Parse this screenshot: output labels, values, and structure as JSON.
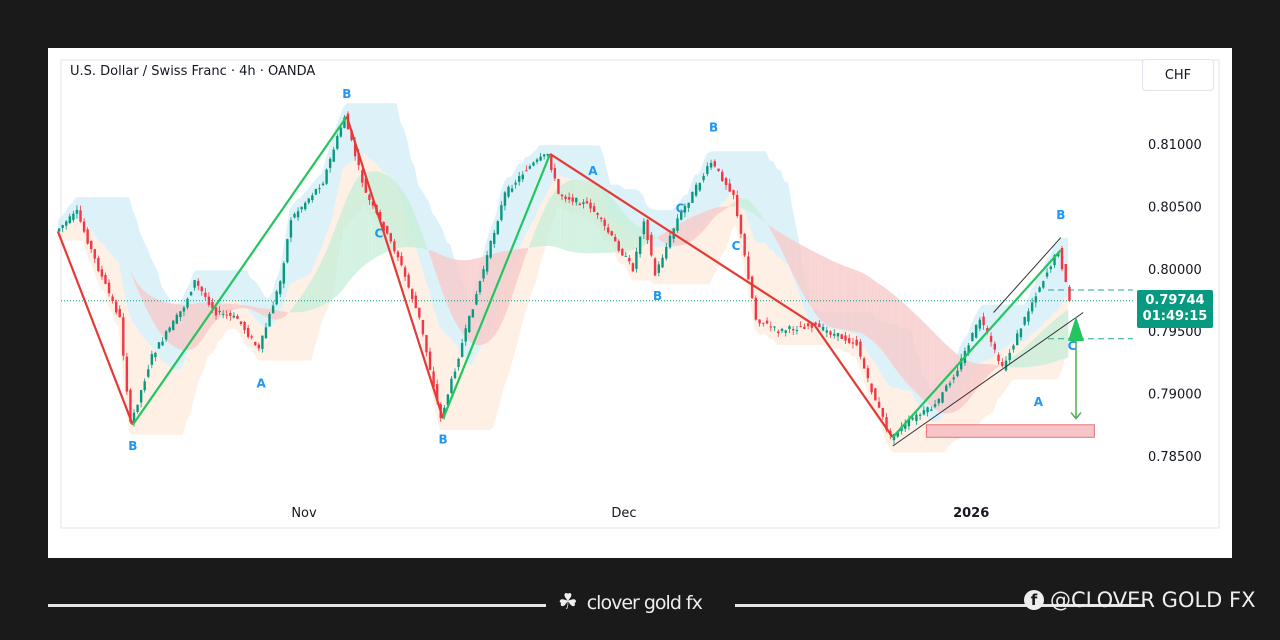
{
  "header": {
    "title": "U.S. Dollar / Swiss Franc · 4h · OANDA",
    "currency_button": "CHF"
  },
  "price_tag": {
    "price": "0.79744",
    "countdown": "01:49:15",
    "color": "#089981"
  },
  "colors": {
    "up": "#089981",
    "down": "#f23645",
    "wave_label": "#2196f3",
    "zigzag_up": "#22c55e",
    "zigzag_down": "#e53935",
    "cloud_bear": "#f8c9c9",
    "cloud_bull": "#c8efd9",
    "band": "#bfe8f2",
    "target_zone": "#f7c5c8"
  },
  "footer": {
    "brand": "clover gold fx",
    "social": "@CLOVER GOLD FX",
    "brand_icon": "clover-icon",
    "social_icon": "facebook-icon"
  },
  "chart_data": {
    "type": "candlestick",
    "title": "U.S. Dollar / Swiss Franc · 4h · OANDA",
    "ylim": [
      0.7825,
      0.8135
    ],
    "y_ticks": [
      "0.81000",
      "0.80500",
      "0.80000",
      "0.79500",
      "0.79000",
      "0.78500"
    ],
    "x_ticks": [
      {
        "label": "Nov",
        "date": "2025-11-01"
      },
      {
        "label": "Dec",
        "date": "2025-12-01"
      },
      {
        "label": "2026",
        "date": "2026-01-01"
      }
    ],
    "swing_points": [
      {
        "date": "2025-10-09",
        "price": 0.803
      },
      {
        "date": "2025-10-11",
        "price": 0.8045
      },
      {
        "date": "2025-10-13",
        "price": 0.8
      },
      {
        "date": "2025-10-15",
        "price": 0.796
      },
      {
        "date": "2025-10-16",
        "price": 0.7875
      },
      {
        "date": "2025-10-18",
        "price": 0.793
      },
      {
        "date": "2025-10-21",
        "price": 0.797
      },
      {
        "date": "2025-10-22",
        "price": 0.799
      },
      {
        "date": "2025-10-24",
        "price": 0.7965
      },
      {
        "date": "2025-10-26",
        "price": 0.796
      },
      {
        "date": "2025-10-28",
        "price": 0.7935
      },
      {
        "date": "2025-10-30",
        "price": 0.799
      },
      {
        "date": "2025-10-31",
        "price": 0.804
      },
      {
        "date": "2025-11-03",
        "price": 0.807
      },
      {
        "date": "2025-11-05",
        "price": 0.8122
      },
      {
        "date": "2025-11-07",
        "price": 0.806
      },
      {
        "date": "2025-11-10",
        "price": 0.801
      },
      {
        "date": "2025-11-12",
        "price": 0.796
      },
      {
        "date": "2025-11-14",
        "price": 0.788
      },
      {
        "date": "2025-11-16",
        "price": 0.794
      },
      {
        "date": "2025-11-18",
        "price": 0.8
      },
      {
        "date": "2025-11-20",
        "price": 0.806
      },
      {
        "date": "2025-11-22",
        "price": 0.808
      },
      {
        "date": "2025-11-24",
        "price": 0.8092
      },
      {
        "date": "2025-11-25",
        "price": 0.806
      },
      {
        "date": "2025-11-28",
        "price": 0.805
      },
      {
        "date": "2025-12-02",
        "price": 0.8
      },
      {
        "date": "2025-12-03",
        "price": 0.804
      },
      {
        "date": "2025-12-04",
        "price": 0.7995
      },
      {
        "date": "2025-12-06",
        "price": 0.804
      },
      {
        "date": "2025-12-09",
        "price": 0.8085
      },
      {
        "date": "2025-12-11",
        "price": 0.806
      },
      {
        "date": "2025-12-13",
        "price": 0.796
      },
      {
        "date": "2025-12-15",
        "price": 0.795
      },
      {
        "date": "2025-12-18",
        "price": 0.7955
      },
      {
        "date": "2025-12-22",
        "price": 0.794
      },
      {
        "date": "2025-12-23",
        "price": 0.791
      },
      {
        "date": "2025-12-25",
        "price": 0.7865
      },
      {
        "date": "2025-12-27",
        "price": 0.788
      },
      {
        "date": "2025-12-29",
        "price": 0.789
      },
      {
        "date": "2025-12-31",
        "price": 0.792
      },
      {
        "date": "2026-01-02",
        "price": 0.796
      },
      {
        "date": "2026-01-04",
        "price": 0.792
      },
      {
        "date": "2026-01-07",
        "price": 0.798
      },
      {
        "date": "2026-01-09",
        "price": 0.8015
      },
      {
        "date": "2026-01-10",
        "price": 0.79744
      }
    ],
    "wave_labels": [
      {
        "text": "B",
        "date": "2025-10-16",
        "price": 0.7855
      },
      {
        "text": "A",
        "date": "2025-10-28",
        "price": 0.7905
      },
      {
        "text": "B",
        "date": "2025-11-05",
        "price": 0.8137
      },
      {
        "text": "C",
        "date": "2025-11-08",
        "price": 0.8025
      },
      {
        "text": "B",
        "date": "2025-11-14",
        "price": 0.786
      },
      {
        "text": "A",
        "date": "2025-11-28",
        "price": 0.8075
      },
      {
        "text": "C",
        "date": "2025-12-06",
        "price": 0.8045
      },
      {
        "text": "B",
        "date": "2025-12-09",
        "price": 0.811
      },
      {
        "text": "B",
        "date": "2025-12-04",
        "price": 0.7975
      },
      {
        "text": "C",
        "date": "2025-12-11",
        "price": 0.8015
      },
      {
        "text": "B",
        "date": "2026-01-09",
        "price": 0.804
      },
      {
        "text": "A",
        "date": "2026-01-07",
        "price": 0.789
      },
      {
        "text": "C",
        "date": "2026-01-10",
        "price": 0.7935
      }
    ],
    "dashed_levels": [
      0.7983,
      0.7944
    ],
    "current_price_line": 0.79744,
    "target_zone": {
      "from": "2025-12-28",
      "to": "2026-01-12",
      "low": 0.7865,
      "high": 0.7875
    },
    "projection_arrow": {
      "date": "2026-01-10",
      "from": 0.7945,
      "to": 0.788
    }
  }
}
